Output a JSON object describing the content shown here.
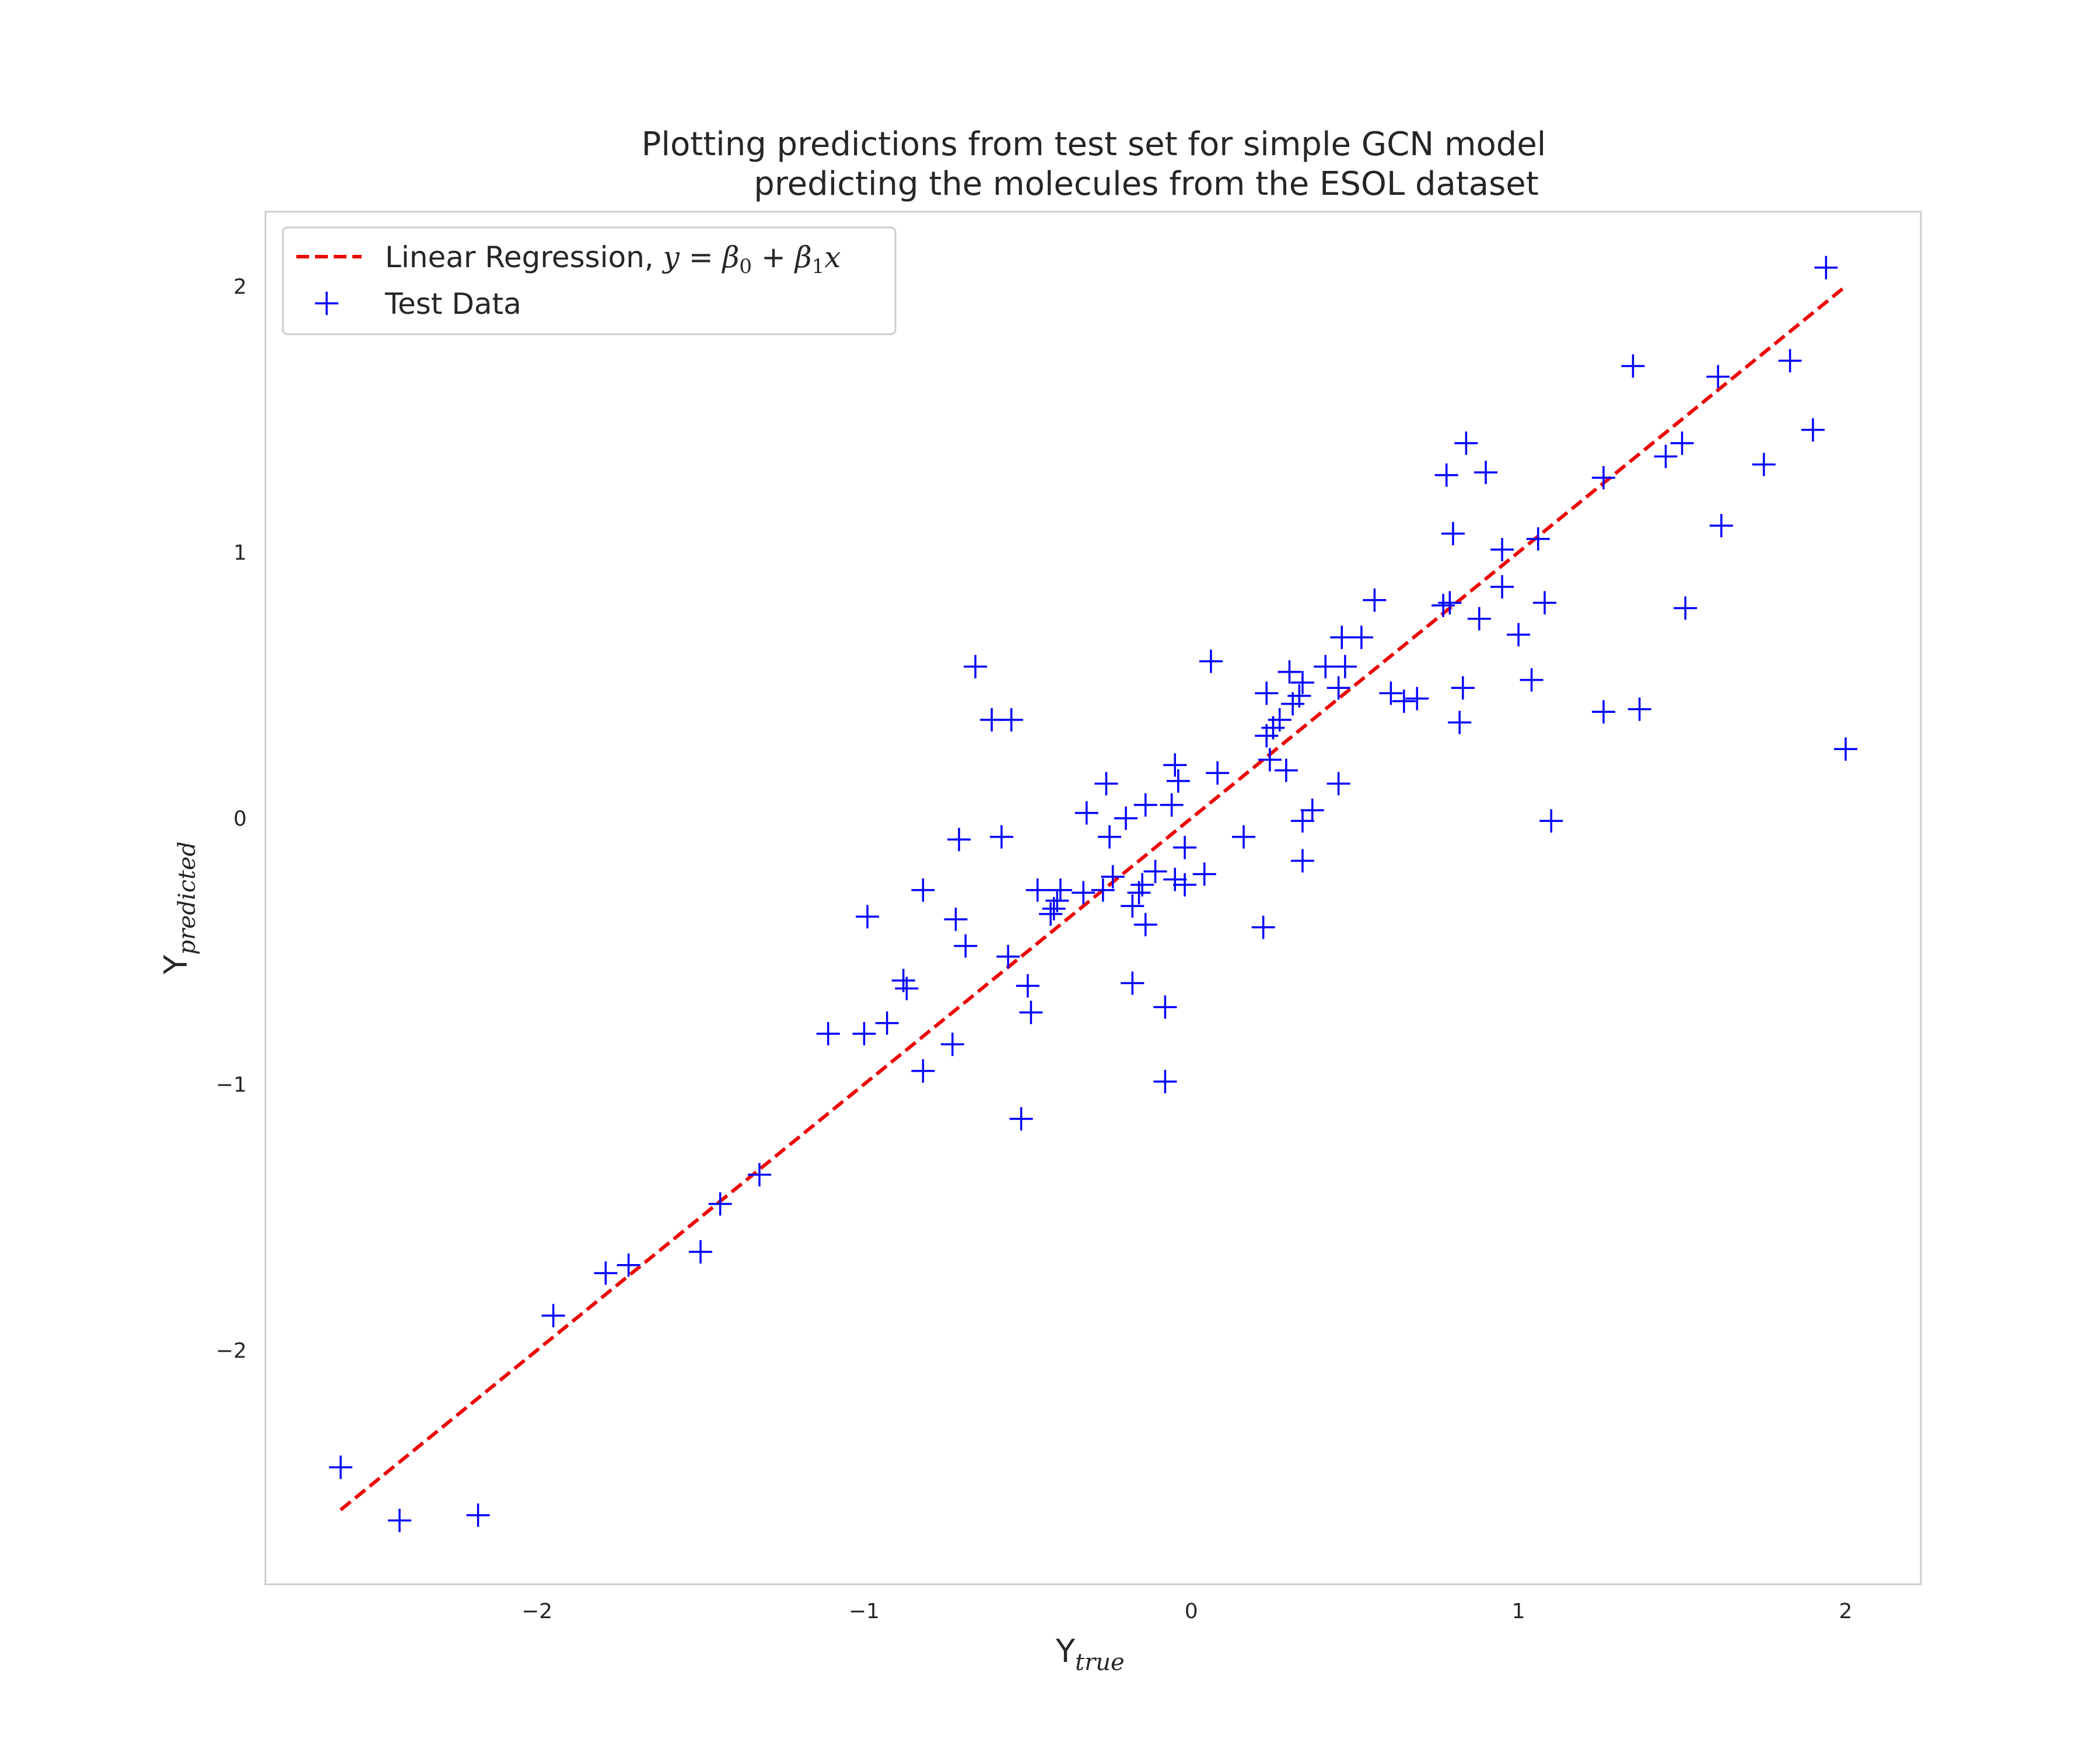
{
  "chart_data": {
    "type": "scatter",
    "title": "Plotting predictions from test set for simple GCN model",
    "title_line2": "predicting the molecules from the ESOL dataset",
    "xlabel": "Y",
    "xlabel_sub": "true",
    "ylabel": "Y",
    "ylabel_sub": "predicted",
    "xlim": [
      -2.83,
      2.23
    ],
    "ylim": [
      -2.88,
      2.28
    ],
    "grid": false,
    "legend_position": "top-left",
    "xticks": [
      -2,
      -1,
      0,
      1,
      2
    ],
    "yticks": [
      -2,
      -1,
      0,
      1,
      2
    ],
    "xtick_labels": [
      "−2",
      "−1",
      "0",
      "1",
      "2"
    ],
    "ytick_labels": [
      "−2",
      "−1",
      "0",
      "1",
      "2"
    ],
    "colors": {
      "series": "#0000ff",
      "regression": "#ee0000",
      "frame": "#cccccc"
    },
    "series": [
      {
        "name": "Linear Regression",
        "legend_label": "Linear Regression, ",
        "legend_formula": [
          "y",
          " = ",
          "β",
          "0",
          " + ",
          "β",
          "1",
          "x"
        ],
        "kind": "line",
        "style": "dashed",
        "points": [
          [
            -2.6,
            -2.6
          ],
          [
            2.0,
            2.0
          ]
        ]
      },
      {
        "name": "Test Data",
        "legend_label": "Test Data",
        "kind": "marker",
        "marker": "plus",
        "points": [
          [
            -2.6,
            -2.44
          ],
          [
            -2.42,
            -2.64
          ],
          [
            -2.18,
            -2.62
          ],
          [
            -1.95,
            -1.87
          ],
          [
            -1.79,
            -1.71
          ],
          [
            -1.72,
            -1.68
          ],
          [
            -1.5,
            -1.63
          ],
          [
            -1.44,
            -1.45
          ],
          [
            -1.32,
            -1.34
          ],
          [
            -1.11,
            -0.81
          ],
          [
            -1.0,
            -0.81
          ],
          [
            -0.99,
            -0.37
          ],
          [
            -0.93,
            -0.77
          ],
          [
            -0.88,
            -0.61
          ],
          [
            -0.87,
            -0.64
          ],
          [
            -0.82,
            -0.95
          ],
          [
            -0.82,
            -0.27
          ],
          [
            -0.73,
            -0.85
          ],
          [
            -0.72,
            -0.38
          ],
          [
            -0.71,
            -0.08
          ],
          [
            -0.69,
            -0.48
          ],
          [
            -0.66,
            0.57
          ],
          [
            -0.61,
            0.37
          ],
          [
            -0.58,
            -0.07
          ],
          [
            -0.56,
            -0.52
          ],
          [
            -0.55,
            0.37
          ],
          [
            -0.52,
            -1.13
          ],
          [
            -0.5,
            -0.63
          ],
          [
            -0.49,
            -0.73
          ],
          [
            -0.47,
            -0.27
          ],
          [
            -0.43,
            -0.36
          ],
          [
            -0.42,
            -0.34
          ],
          [
            -0.41,
            -0.31
          ],
          [
            -0.4,
            -0.27
          ],
          [
            -0.33,
            -0.28
          ],
          [
            -0.32,
            0.02
          ],
          [
            -0.27,
            -0.27
          ],
          [
            -0.26,
            0.13
          ],
          [
            -0.25,
            -0.07
          ],
          [
            -0.24,
            -0.22
          ],
          [
            -0.2,
            0.0
          ],
          [
            -0.18,
            -0.62
          ],
          [
            -0.18,
            -0.33
          ],
          [
            -0.16,
            -0.28
          ],
          [
            -0.15,
            -0.25
          ],
          [
            -0.14,
            0.05
          ],
          [
            -0.14,
            -0.4
          ],
          [
            -0.11,
            -0.2
          ],
          [
            -0.08,
            -0.71
          ],
          [
            -0.08,
            -0.99
          ],
          [
            -0.06,
            0.05
          ],
          [
            -0.05,
            0.2
          ],
          [
            -0.05,
            -0.23
          ],
          [
            -0.04,
            0.14
          ],
          [
            -0.02,
            -0.11
          ],
          [
            -0.02,
            -0.25
          ],
          [
            0.04,
            -0.21
          ],
          [
            0.06,
            0.59
          ],
          [
            0.08,
            0.17
          ],
          [
            0.16,
            -0.07
          ],
          [
            0.22,
            -0.41
          ],
          [
            0.23,
            0.31
          ],
          [
            0.23,
            0.47
          ],
          [
            0.24,
            0.22
          ],
          [
            0.25,
            0.34
          ],
          [
            0.27,
            0.37
          ],
          [
            0.29,
            0.18
          ],
          [
            0.3,
            0.55
          ],
          [
            0.31,
            0.43
          ],
          [
            0.33,
            0.46
          ],
          [
            0.34,
            0.51
          ],
          [
            0.34,
            -0.01
          ],
          [
            0.34,
            -0.16
          ],
          [
            0.37,
            0.03
          ],
          [
            0.41,
            0.57
          ],
          [
            0.45,
            0.13
          ],
          [
            0.45,
            0.49
          ],
          [
            0.46,
            0.68
          ],
          [
            0.47,
            0.57
          ],
          [
            0.52,
            0.68
          ],
          [
            0.56,
            0.82
          ],
          [
            0.61,
            0.47
          ],
          [
            0.65,
            0.44
          ],
          [
            0.69,
            0.45
          ],
          [
            0.77,
            0.8
          ],
          [
            0.78,
            1.29
          ],
          [
            0.79,
            0.81
          ],
          [
            0.8,
            1.07
          ],
          [
            0.82,
            0.36
          ],
          [
            0.83,
            0.49
          ],
          [
            0.84,
            1.41
          ],
          [
            0.88,
            0.75
          ],
          [
            0.9,
            1.3
          ],
          [
            0.95,
            0.87
          ],
          [
            0.95,
            1.01
          ],
          [
            1.0,
            0.69
          ],
          [
            1.04,
            0.52
          ],
          [
            1.06,
            1.05
          ],
          [
            1.08,
            0.81
          ],
          [
            1.1,
            -0.01
          ],
          [
            1.26,
            1.28
          ],
          [
            1.26,
            0.4
          ],
          [
            1.35,
            1.7
          ],
          [
            1.37,
            0.41
          ],
          [
            1.45,
            1.36
          ],
          [
            1.5,
            1.41
          ],
          [
            1.51,
            0.79
          ],
          [
            1.61,
            1.66
          ],
          [
            1.62,
            1.1
          ],
          [
            1.75,
            1.33
          ],
          [
            1.83,
            1.72
          ],
          [
            1.9,
            1.46
          ],
          [
            1.94,
            2.07
          ],
          [
            2.0,
            0.26
          ]
        ]
      }
    ]
  }
}
